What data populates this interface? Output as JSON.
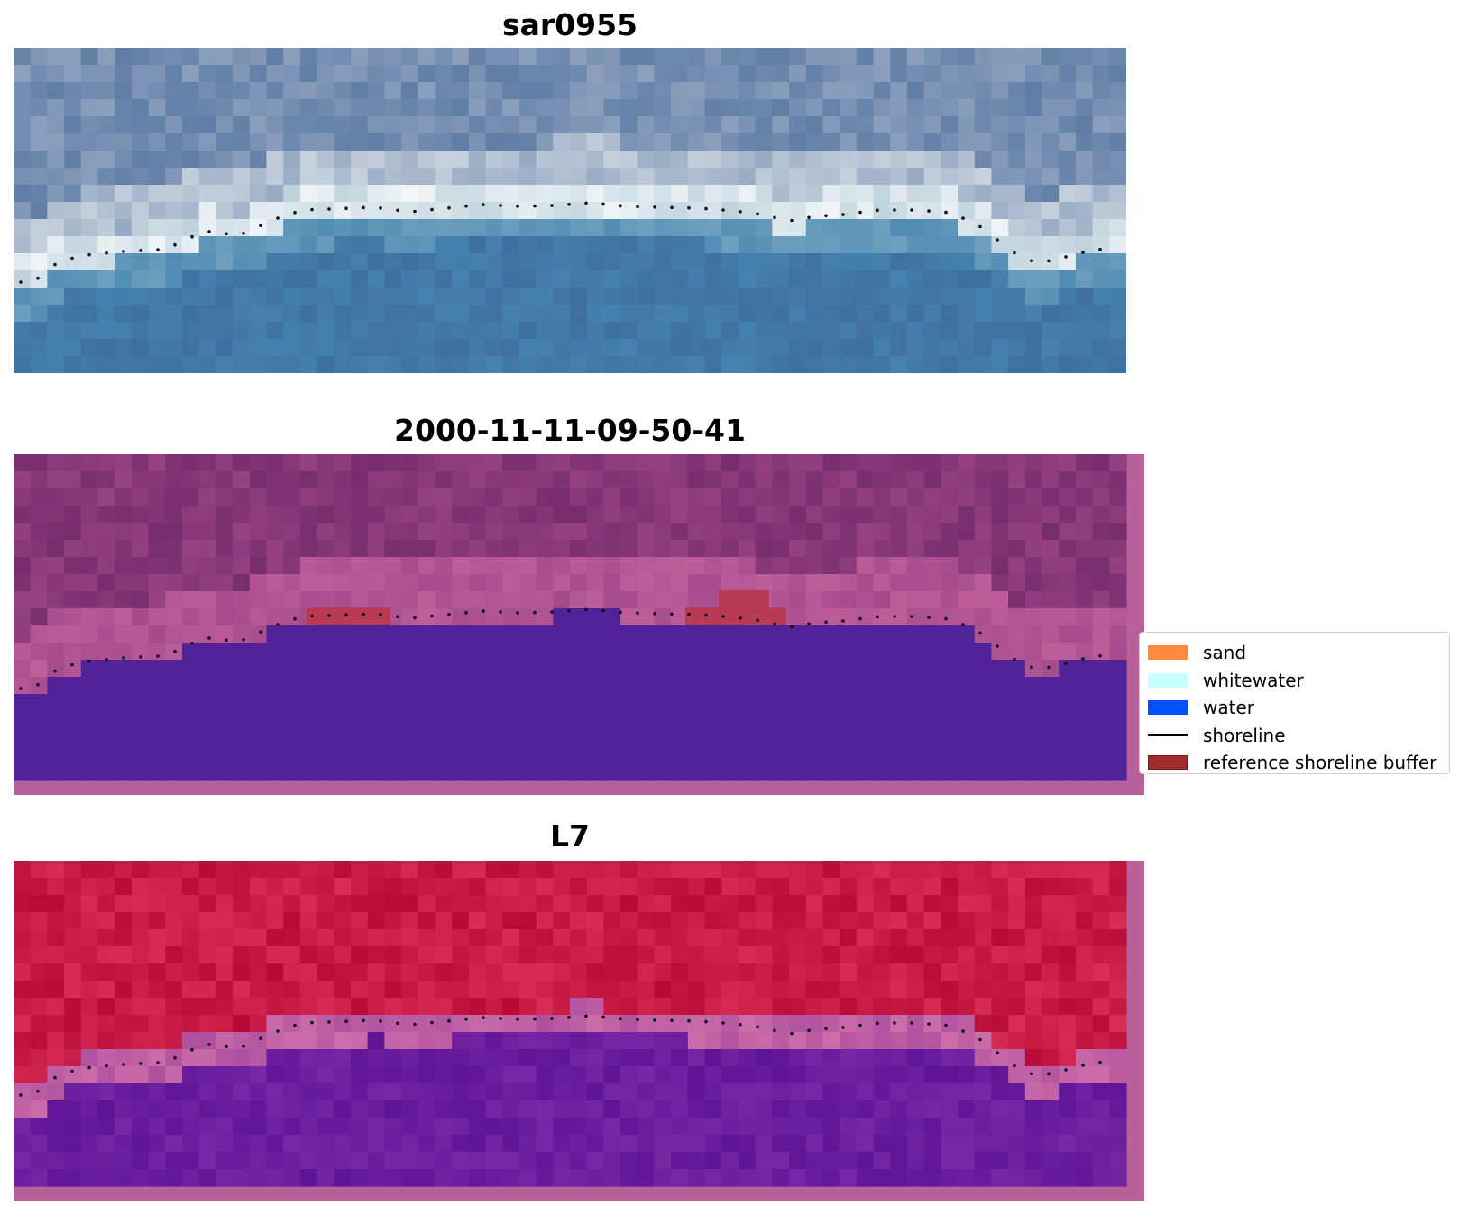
{
  "panels": [
    {
      "title": "sar0955"
    },
    {
      "title": "2000-11-11-09-50-41"
    },
    {
      "title": "L7"
    }
  ],
  "legend": {
    "items": [
      {
        "label": "sand",
        "color": "#ff8c3c"
      },
      {
        "label": "whitewater",
        "color": "#c8ffff"
      },
      {
        "label": "water",
        "color": "#0050ff"
      },
      {
        "label": "shoreline",
        "color": "#000000",
        "style": "line"
      },
      {
        "label": "reference shoreline buffer",
        "color": "#a02c2c",
        "border": "#7a1a1a"
      }
    ]
  }
}
